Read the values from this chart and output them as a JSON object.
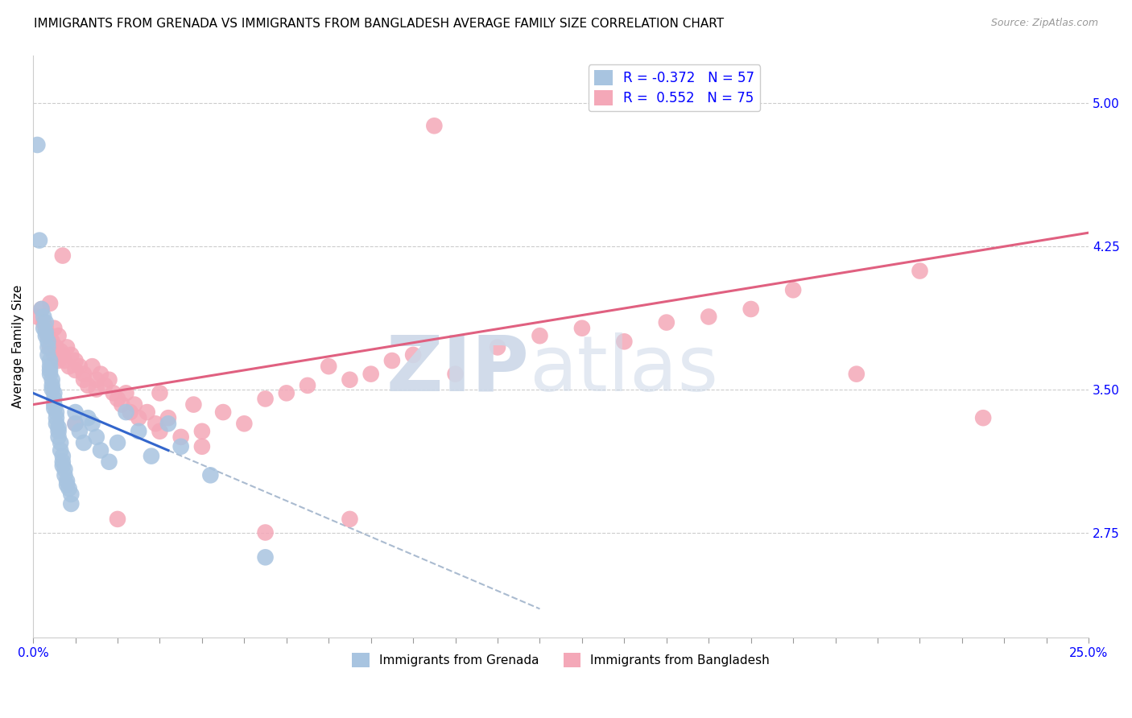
{
  "title": "IMMIGRANTS FROM GRENADA VS IMMIGRANTS FROM BANGLADESH AVERAGE FAMILY SIZE CORRELATION CHART",
  "source": "Source: ZipAtlas.com",
  "ylabel": "Average Family Size",
  "yright_ticks": [
    2.75,
    3.5,
    4.25,
    5.0
  ],
  "xmin": 0.0,
  "xmax": 25.0,
  "ymin": 2.2,
  "ymax": 5.25,
  "grenada_R": -0.372,
  "grenada_N": 57,
  "bangladesh_R": 0.552,
  "bangladesh_N": 75,
  "grenada_color": "#a8c4e0",
  "bangladesh_color": "#f4a8b8",
  "grenada_line_color": "#3366cc",
  "bangladesh_line_color": "#e06080",
  "dashed_line_color": "#aabbd0",
  "title_fontsize": 11,
  "source_fontsize": 9,
  "background_color": "#ffffff",
  "grenada_x": [
    0.1,
    0.15,
    0.2,
    0.25,
    0.25,
    0.3,
    0.3,
    0.3,
    0.35,
    0.35,
    0.35,
    0.4,
    0.4,
    0.4,
    0.4,
    0.45,
    0.45,
    0.45,
    0.5,
    0.5,
    0.5,
    0.5,
    0.55,
    0.55,
    0.55,
    0.6,
    0.6,
    0.6,
    0.65,
    0.65,
    0.7,
    0.7,
    0.7,
    0.75,
    0.75,
    0.8,
    0.8,
    0.85,
    0.9,
    0.9,
    1.0,
    1.0,
    1.1,
    1.2,
    1.3,
    1.4,
    1.5,
    1.6,
    1.8,
    2.0,
    2.2,
    2.5,
    2.8,
    3.2,
    3.5,
    4.2,
    5.5
  ],
  "grenada_y": [
    4.78,
    4.28,
    3.92,
    3.88,
    3.82,
    3.85,
    3.8,
    3.78,
    3.75,
    3.72,
    3.68,
    3.65,
    3.62,
    3.6,
    3.58,
    3.55,
    3.52,
    3.5,
    3.48,
    3.45,
    3.42,
    3.4,
    3.38,
    3.35,
    3.32,
    3.3,
    3.28,
    3.25,
    3.22,
    3.18,
    3.15,
    3.12,
    3.1,
    3.08,
    3.05,
    3.02,
    3.0,
    2.98,
    2.95,
    2.9,
    3.38,
    3.32,
    3.28,
    3.22,
    3.35,
    3.32,
    3.25,
    3.18,
    3.12,
    3.22,
    3.38,
    3.28,
    3.15,
    3.32,
    3.2,
    3.05,
    2.62
  ],
  "bangladesh_x": [
    0.1,
    0.2,
    0.25,
    0.3,
    0.35,
    0.4,
    0.4,
    0.45,
    0.5,
    0.5,
    0.55,
    0.6,
    0.6,
    0.65,
    0.7,
    0.75,
    0.8,
    0.85,
    0.9,
    1.0,
    1.0,
    1.1,
    1.2,
    1.2,
    1.3,
    1.4,
    1.5,
    1.6,
    1.7,
    1.8,
    1.9,
    2.0,
    2.1,
    2.2,
    2.3,
    2.4,
    2.5,
    2.7,
    2.9,
    3.0,
    3.2,
    3.5,
    3.8,
    4.0,
    4.5,
    5.0,
    5.5,
    6.0,
    6.5,
    7.0,
    7.5,
    8.0,
    8.5,
    9.0,
    10.0,
    11.0,
    12.0,
    13.0,
    14.0,
    15.0,
    16.0,
    17.0,
    18.0,
    19.5,
    21.0,
    22.5,
    0.7,
    1.0,
    1.5,
    2.0,
    3.0,
    4.0,
    5.5,
    7.5,
    9.5
  ],
  "bangladesh_y": [
    3.88,
    3.92,
    3.85,
    3.82,
    3.78,
    3.95,
    3.72,
    3.75,
    3.82,
    3.68,
    3.72,
    3.65,
    3.78,
    3.7,
    3.68,
    3.65,
    3.72,
    3.62,
    3.68,
    3.65,
    3.6,
    3.62,
    3.58,
    3.55,
    3.52,
    3.62,
    3.55,
    3.58,
    3.52,
    3.55,
    3.48,
    3.45,
    3.42,
    3.48,
    3.38,
    3.42,
    3.35,
    3.38,
    3.32,
    3.28,
    3.35,
    3.25,
    3.42,
    3.2,
    3.38,
    3.32,
    3.45,
    3.48,
    3.52,
    3.62,
    3.55,
    3.58,
    3.65,
    3.68,
    3.58,
    3.72,
    3.78,
    3.82,
    3.75,
    3.85,
    3.88,
    3.92,
    4.02,
    3.58,
    4.12,
    3.35,
    4.2,
    3.32,
    3.5,
    2.82,
    3.48,
    3.28,
    2.75,
    2.82,
    4.88
  ],
  "grenada_line_x0": 0.0,
  "grenada_line_y0": 3.48,
  "grenada_line_x1": 3.2,
  "grenada_line_y1": 3.18,
  "grenada_dash_x0": 3.2,
  "grenada_dash_y0": 3.18,
  "grenada_dash_x1": 12.0,
  "grenada_dash_y1": 2.35,
  "bangladesh_line_x0": 0.0,
  "bangladesh_line_y0": 3.42,
  "bangladesh_line_x1": 25.0,
  "bangladesh_line_y1": 4.32
}
